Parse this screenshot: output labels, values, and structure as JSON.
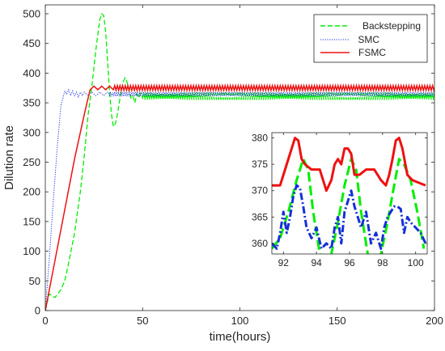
{
  "chart_data": [
    {
      "type": "line",
      "xlabel": "time(hours)",
      "ylabel": "Dilution rate",
      "xlim": [
        0,
        200
      ],
      "ylim": [
        0,
        515
      ],
      "xticks": [
        0,
        50,
        100,
        150,
        200
      ],
      "yticks": [
        0,
        50,
        100,
        150,
        200,
        250,
        300,
        350,
        400,
        450,
        500
      ],
      "grid": false,
      "legend_position": "top-right",
      "series": [
        {
          "name": "Backstepping",
          "color": "#00ee00",
          "style": "dashed",
          "x": [
            0,
            2,
            5,
            8,
            10,
            12,
            15,
            18,
            20,
            22,
            24,
            26,
            28,
            29,
            30,
            31,
            32,
            33,
            34,
            35,
            36,
            37,
            38,
            39,
            40,
            41,
            42,
            43,
            44,
            45,
            46,
            47,
            48,
            49,
            50
          ],
          "values": [
            0,
            28,
            22,
            35,
            50,
            80,
            130,
            200,
            260,
            330,
            380,
            440,
            490,
            500,
            497,
            470,
            420,
            370,
            330,
            310,
            315,
            330,
            350,
            370,
            385,
            392,
            385,
            370,
            358,
            362,
            350,
            365,
            358,
            366,
            358
          ]
        },
        {
          "name": "SMC",
          "color": "#2233dd",
          "style": "dotted",
          "x": [
            0,
            2,
            4,
            6,
            8,
            10,
            11,
            12,
            13,
            14,
            15,
            16,
            17,
            18,
            19,
            20,
            22,
            24,
            26,
            28,
            30,
            32
          ],
          "values": [
            0,
            85,
            180,
            270,
            345,
            370,
            365,
            372,
            362,
            370,
            362,
            368,
            360,
            368,
            362,
            368,
            362,
            368,
            362,
            368,
            362,
            368
          ]
        },
        {
          "name": "FSMC",
          "color": "#ee1111",
          "style": "solid",
          "x": [
            0,
            5,
            10,
            15,
            20,
            23,
            25,
            27,
            29,
            31,
            33,
            35
          ],
          "values": [
            0,
            85,
            170,
            255,
            330,
            372,
            378,
            372,
            378,
            372,
            378,
            372
          ]
        }
      ]
    },
    {
      "type": "line",
      "xlim": [
        91.3,
        100.7
      ],
      "ylim": [
        358,
        381
      ],
      "xticks": [
        92,
        94,
        96,
        98,
        100
      ],
      "yticks": [
        360,
        365,
        370,
        375,
        380
      ],
      "grid": false,
      "series": [
        {
          "color": "#ee1111",
          "style": "solid",
          "x": [
            91.3,
            91.8,
            92.2,
            92.5,
            92.7,
            92.9,
            93.1,
            93.3,
            93.7,
            94.2,
            94.6,
            94.9,
            95.1,
            95.3,
            95.5,
            95.7,
            95.9,
            96.1,
            96.3,
            96.6,
            97.0,
            97.5,
            97.9,
            98.2,
            98.4,
            98.6,
            98.8,
            99.0,
            99.2,
            99.5,
            99.8,
            100.2,
            100.6
          ],
          "values": [
            371,
            371,
            375,
            378,
            380,
            379.5,
            376,
            375,
            374,
            374,
            370,
            372,
            375,
            376,
            375,
            378,
            378,
            377,
            373,
            373,
            374,
            374,
            372,
            371,
            373,
            376,
            379.5,
            380,
            378,
            373,
            372,
            371.5,
            371
          ]
        },
        {
          "color": "#00ee00",
          "style": "dashed",
          "x": [
            91.3,
            91.8,
            92.3,
            92.8,
            93.2,
            93.5,
            93.8,
            94.2,
            94.6,
            94.9,
            95.3,
            95.7,
            96.1,
            96.4,
            96.7,
            97.1,
            97.5,
            97.9,
            98.3,
            98.7,
            99.0,
            99.3,
            99.7,
            100.1,
            100.5
          ],
          "values": [
            359,
            361,
            366,
            372,
            376,
            374,
            366,
            358,
            357,
            358,
            364,
            371,
            376,
            374,
            366,
            358,
            357,
            358,
            364,
            371,
            376,
            375,
            372,
            366,
            359
          ]
        },
        {
          "color": "#1530d8",
          "style": "dashdot",
          "x": [
            91.3,
            91.6,
            91.8,
            92.0,
            92.2,
            92.4,
            92.6,
            92.8,
            93.0,
            93.2,
            93.4,
            93.7,
            94.0,
            94.3,
            94.6,
            94.9,
            95.1,
            95.3,
            95.5,
            95.7,
            95.9,
            96.1,
            96.3,
            96.5,
            96.7,
            97.0,
            97.3,
            97.6,
            97.9,
            98.1,
            98.3,
            98.5,
            98.7,
            98.9,
            99.1,
            99.3,
            99.5,
            99.7,
            100.0,
            100.3,
            100.6
          ],
          "values": [
            360,
            359,
            362,
            366,
            362,
            365,
            369,
            371,
            370.5,
            367,
            363,
            361,
            363,
            359,
            360,
            359,
            363,
            365,
            360,
            366,
            368,
            370,
            367,
            365,
            363,
            366,
            360,
            362,
            359,
            363,
            365,
            366,
            367,
            367,
            366.5,
            362,
            365,
            364,
            363,
            362,
            360
          ]
        }
      ]
    }
  ]
}
